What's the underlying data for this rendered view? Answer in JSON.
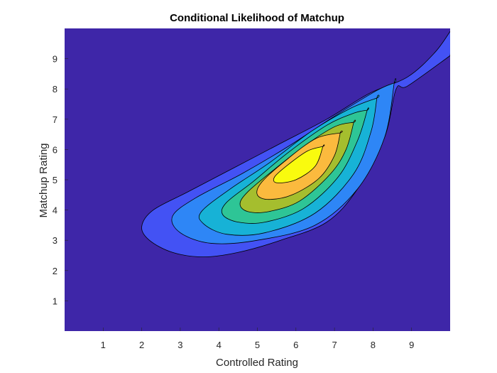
{
  "chart_data": {
    "type": "contour",
    "title": "Conditional Likelihood of Matchup",
    "xlabel": "Controlled Rating",
    "ylabel": "Matchup Rating",
    "xlim": [
      0,
      10
    ],
    "ylim": [
      0,
      10
    ],
    "xticks": [
      1,
      2,
      3,
      4,
      5,
      6,
      7,
      8,
      9
    ],
    "yticks": [
      1,
      2,
      3,
      4,
      5,
      6,
      7,
      8,
      9
    ],
    "peak": {
      "x": 6.1,
      "y": 5.4
    },
    "colormap": "parula",
    "background_color": "#3e26a8",
    "levels": [
      {
        "level": 1,
        "color": "#4352f4",
        "outline": [
          [
            10,
            9.1
          ],
          [
            8.9,
            8.1
          ],
          [
            8.6,
            8.0
          ],
          [
            8.3,
            6.4
          ],
          [
            7.6,
            4.7
          ],
          [
            6.8,
            3.6
          ],
          [
            5.6,
            3.0
          ],
          [
            4.5,
            2.6
          ],
          [
            3.6,
            2.45
          ],
          [
            2.8,
            2.6
          ],
          [
            2.2,
            3.0
          ],
          [
            2.0,
            3.45
          ],
          [
            2.3,
            4.0
          ],
          [
            3.2,
            4.6
          ],
          [
            4.4,
            5.4
          ],
          [
            5.6,
            6.2
          ],
          [
            6.8,
            7.0
          ],
          [
            7.9,
            7.85
          ],
          [
            8.9,
            8.4
          ],
          [
            9.6,
            9.2
          ],
          [
            10,
            9.9
          ]
        ],
        "open": true
      },
      {
        "level": 2,
        "color": "#2e86f6",
        "outline": [
          [
            8.55,
            8.2
          ],
          [
            8.3,
            6.4
          ],
          [
            7.6,
            4.7
          ],
          [
            6.5,
            3.5
          ],
          [
            5.0,
            3.0
          ],
          [
            3.8,
            2.9
          ],
          [
            3.0,
            3.25
          ],
          [
            2.8,
            3.8
          ],
          [
            3.4,
            4.4
          ],
          [
            4.6,
            5.2
          ],
          [
            5.8,
            6.1
          ],
          [
            7.0,
            7.1
          ],
          [
            8.1,
            7.95
          ],
          [
            8.55,
            8.2
          ]
        ]
      },
      {
        "level": 3,
        "color": "#17b2d6",
        "outline": [
          [
            8.1,
            7.7
          ],
          [
            7.95,
            6.6
          ],
          [
            7.5,
            5.2
          ],
          [
            6.5,
            3.9
          ],
          [
            5.2,
            3.25
          ],
          [
            4.2,
            3.2
          ],
          [
            3.6,
            3.55
          ],
          [
            3.55,
            3.95
          ],
          [
            4.3,
            4.7
          ],
          [
            5.3,
            5.55
          ],
          [
            6.4,
            6.6
          ],
          [
            7.4,
            7.35
          ],
          [
            8.1,
            7.7
          ]
        ]
      },
      {
        "level": 4,
        "color": "#2ec596",
        "outline": [
          [
            7.85,
            7.3
          ],
          [
            7.6,
            6.3
          ],
          [
            7.1,
            5.1
          ],
          [
            6.2,
            4.05
          ],
          [
            5.2,
            3.6
          ],
          [
            4.5,
            3.6
          ],
          [
            4.1,
            3.85
          ],
          [
            4.2,
            4.25
          ],
          [
            4.9,
            4.95
          ],
          [
            5.8,
            5.9
          ],
          [
            6.8,
            6.8
          ],
          [
            7.5,
            7.2
          ],
          [
            7.85,
            7.3
          ]
        ]
      },
      {
        "level": 5,
        "color": "#a5be2e",
        "outline": [
          [
            7.5,
            6.9
          ],
          [
            7.3,
            6.0
          ],
          [
            6.9,
            5.2
          ],
          [
            6.1,
            4.3
          ],
          [
            5.3,
            3.95
          ],
          [
            4.75,
            3.95
          ],
          [
            4.55,
            4.2
          ],
          [
            4.75,
            4.6
          ],
          [
            5.4,
            5.3
          ],
          [
            6.2,
            6.1
          ],
          [
            7.0,
            6.75
          ],
          [
            7.5,
            6.9
          ]
        ]
      },
      {
        "level": 6,
        "color": "#fbba3e",
        "outline": [
          [
            7.15,
            6.55
          ],
          [
            7.0,
            5.8
          ],
          [
            6.6,
            5.05
          ],
          [
            5.9,
            4.5
          ],
          [
            5.3,
            4.35
          ],
          [
            5.0,
            4.5
          ],
          [
            5.1,
            4.9
          ],
          [
            5.7,
            5.6
          ],
          [
            6.5,
            6.35
          ],
          [
            7.15,
            6.55
          ]
        ]
      },
      {
        "level": 7,
        "color": "#f9fb0e",
        "outline": [
          [
            6.7,
            6.1
          ],
          [
            6.5,
            5.45
          ],
          [
            6.0,
            5.0
          ],
          [
            5.5,
            4.9
          ],
          [
            5.45,
            5.1
          ],
          [
            5.8,
            5.5
          ],
          [
            6.3,
            5.95
          ],
          [
            6.7,
            6.1
          ]
        ]
      }
    ]
  }
}
